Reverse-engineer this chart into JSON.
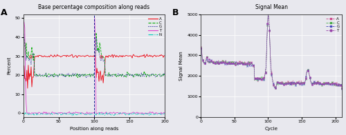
{
  "panel_A": {
    "title": "Base percentage composition along reads",
    "xlabel": "Position along reads",
    "ylabel": "Percent",
    "xlim": [
      0,
      200
    ],
    "ylim": [
      -2,
      52
    ],
    "yticks": [
      0,
      10,
      20,
      30,
      40,
      50
    ],
    "xticks": [
      0,
      50,
      100,
      150,
      200
    ],
    "vline_x": 100,
    "legend": [
      "A",
      "C",
      "G",
      "T",
      "N"
    ],
    "colors_A": [
      "#e8000d",
      "#00aa00",
      "#000088",
      "#dd44cc",
      "#00ccbb"
    ],
    "styles_A": [
      "-",
      "--",
      ":",
      "-",
      "-."
    ]
  },
  "panel_B": {
    "title": "Signal Mean",
    "xlabel": "Cycle",
    "ylabel": "Signal Mean",
    "xlim": [
      0,
      210
    ],
    "ylim": [
      0,
      5000
    ],
    "yticks": [
      0,
      1000,
      2000,
      3000,
      4000,
      5000
    ],
    "xticks": [
      0,
      50,
      100,
      150,
      200
    ],
    "legend": [
      "A",
      "C",
      "G",
      "T"
    ],
    "colors_B": [
      "#cc4488",
      "#44aa44",
      "#4444bb",
      "#9944aa"
    ],
    "styles_B": [
      "--",
      "--",
      "--",
      "--"
    ],
    "markers_B": [
      "x",
      "x",
      "x",
      "o"
    ]
  },
  "fig_bg": "#e8e8ee"
}
